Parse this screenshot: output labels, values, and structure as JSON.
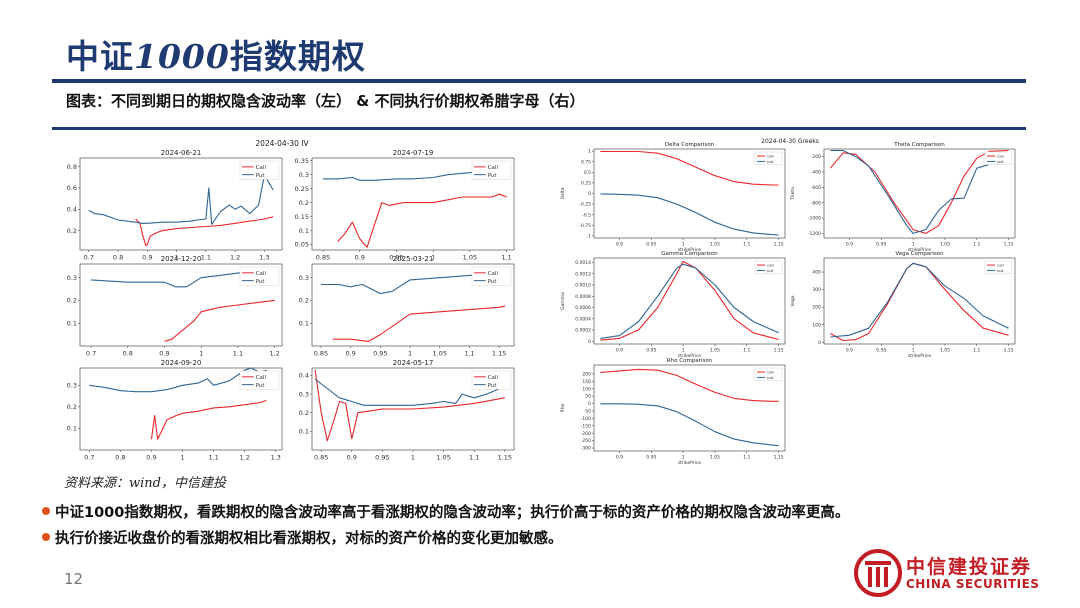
{
  "header": {
    "title_cn": "中证",
    "title_num": "1000",
    "title_cn2": "指数期权",
    "subtitle": "图表：不同到期日的期权隐含波动率（左） & 不同执行价期权希腊字母（右）"
  },
  "source": "资料来源：wind，中信建投",
  "bullets": [
    "中证1000指数期权，看跌期权的隐含波动率高于看涨期权的隐含波动率；执行价高于标的资产价格的期权隐含波动率更高。",
    "执行价接近收盘价的看涨期权相比看涨期权，对标的资产价格的变化更加敏感。"
  ],
  "page_number": "12",
  "logo": {
    "cn": "中信建投证券",
    "en": "CHINA SECURITIES"
  },
  "colors": {
    "call": "#e8262d",
    "put": "#2f6591",
    "brand_blue": "#1f3a70",
    "brand_red": "#c21d24"
  },
  "left_figure": {
    "suptitle": "2024-04-30 IV"
  },
  "right_figure": {
    "suptitle": "2024-04-30 Greeks",
    "xlabel": "strikePrice"
  },
  "chart_data": [
    {
      "type": "line",
      "title": "2024-06-21",
      "xlim": [
        0.67,
        1.36
      ],
      "ylim": [
        0.02,
        0.88
      ],
      "xticks": [
        0.7,
        0.8,
        0.9,
        1.0,
        1.1,
        1.2,
        1.3
      ],
      "yticks": [
        0.2,
        0.4,
        0.6,
        0.8
      ],
      "legend": "top-right",
      "series": [
        {
          "name": "Call",
          "x": [
            0.86,
            0.875,
            0.885,
            0.895,
            0.9,
            0.91,
            0.93,
            0.95,
            1.0,
            1.05,
            1.1,
            1.15,
            1.2,
            1.25,
            1.3,
            1.33
          ],
          "y": [
            0.31,
            0.27,
            0.15,
            0.06,
            0.07,
            0.15,
            0.18,
            0.2,
            0.22,
            0.23,
            0.24,
            0.25,
            0.27,
            0.29,
            0.31,
            0.33
          ]
        },
        {
          "name": "Put",
          "x": [
            0.7,
            0.72,
            0.75,
            0.78,
            0.8,
            0.83,
            0.86,
            0.88,
            0.9,
            0.95,
            1.0,
            1.05,
            1.07,
            1.1,
            1.11,
            1.12,
            1.15,
            1.18,
            1.2,
            1.22,
            1.25,
            1.28,
            1.3,
            1.33
          ],
          "y": [
            0.39,
            0.36,
            0.35,
            0.32,
            0.3,
            0.29,
            0.28,
            0.27,
            0.27,
            0.28,
            0.28,
            0.29,
            0.3,
            0.31,
            0.6,
            0.26,
            0.38,
            0.44,
            0.4,
            0.43,
            0.36,
            0.44,
            0.72,
            0.58
          ]
        }
      ]
    },
    {
      "type": "line",
      "title": "2024-07-19",
      "xlim": [
        0.835,
        1.11
      ],
      "ylim": [
        0.03,
        0.36
      ],
      "xticks": [
        0.85,
        0.9,
        0.95,
        1.0,
        1.05,
        1.1
      ],
      "yticks": [
        0.05,
        0.1,
        0.15,
        0.2,
        0.25,
        0.3,
        0.35
      ],
      "legend": "top-right",
      "series": [
        {
          "name": "Call",
          "x": [
            0.87,
            0.88,
            0.89,
            0.9,
            0.91,
            0.93,
            0.94,
            0.96,
            0.98,
            1.0,
            1.02,
            1.04,
            1.06,
            1.08,
            1.09,
            1.1
          ],
          "y": [
            0.06,
            0.09,
            0.13,
            0.07,
            0.04,
            0.2,
            0.19,
            0.2,
            0.2,
            0.2,
            0.21,
            0.22,
            0.22,
            0.22,
            0.23,
            0.22
          ]
        },
        {
          "name": "Put",
          "x": [
            0.85,
            0.87,
            0.89,
            0.9,
            0.92,
            0.95,
            0.97,
            1.0,
            1.02,
            1.04,
            1.06,
            1.07,
            1.08,
            1.09,
            1.1
          ],
          "y": [
            0.285,
            0.285,
            0.29,
            0.28,
            0.28,
            0.285,
            0.285,
            0.29,
            0.3,
            0.305,
            0.31,
            0.315,
            0.315,
            0.315,
            0.315
          ]
        }
      ]
    },
    {
      "type": "line",
      "title": "2024-12-20",
      "xlim": [
        0.67,
        1.22
      ],
      "ylim": [
        0.0,
        0.36
      ],
      "xticks": [
        0.7,
        0.8,
        0.9,
        1.0,
        1.1,
        1.2
      ],
      "yticks": [
        0.1,
        0.2,
        0.3
      ],
      "legend": "top-right",
      "series": [
        {
          "name": "Call",
          "x": [
            0.9,
            0.92,
            0.95,
            0.98,
            1.0,
            1.05,
            1.1,
            1.15,
            1.2
          ],
          "y": [
            0.02,
            0.03,
            0.07,
            0.11,
            0.15,
            0.17,
            0.18,
            0.19,
            0.2
          ]
        },
        {
          "name": "Put",
          "x": [
            0.7,
            0.75,
            0.8,
            0.85,
            0.9,
            0.93,
            0.96,
            0.98,
            1.0,
            1.05,
            1.1,
            1.15,
            1.2
          ],
          "y": [
            0.29,
            0.285,
            0.28,
            0.28,
            0.28,
            0.26,
            0.26,
            0.28,
            0.3,
            0.31,
            0.32,
            0.33,
            0.33
          ]
        }
      ]
    },
    {
      "type": "line",
      "title": "2025-03-21",
      "xlim": [
        0.835,
        1.175
      ],
      "ylim": [
        0.0,
        0.36
      ],
      "xticks": [
        0.85,
        0.9,
        0.95,
        1.0,
        1.05,
        1.1,
        1.15
      ],
      "yticks": [
        0.1,
        0.2,
        0.3
      ],
      "legend": "top-right",
      "series": [
        {
          "name": "Call",
          "x": [
            0.87,
            0.9,
            0.93,
            0.95,
            1.0,
            1.05,
            1.1,
            1.15,
            1.16
          ],
          "y": [
            0.03,
            0.03,
            0.02,
            0.05,
            0.14,
            0.15,
            0.16,
            0.17,
            0.175
          ]
        },
        {
          "name": "Put",
          "x": [
            0.85,
            0.88,
            0.9,
            0.92,
            0.95,
            0.97,
            1.0,
            1.05,
            1.1,
            1.15
          ],
          "y": [
            0.27,
            0.27,
            0.26,
            0.27,
            0.23,
            0.24,
            0.29,
            0.3,
            0.31,
            0.32
          ]
        }
      ]
    },
    {
      "type": "line",
      "title": "2024-09-20",
      "xlim": [
        0.67,
        1.32
      ],
      "ylim": [
        0.0,
        0.38
      ],
      "xticks": [
        0.7,
        0.8,
        0.9,
        1.0,
        1.1,
        1.2,
        1.3
      ],
      "yticks": [
        0.1,
        0.2,
        0.3
      ],
      "legend": "top-right",
      "series": [
        {
          "name": "Call",
          "x": [
            0.9,
            0.91,
            0.92,
            0.95,
            0.98,
            1.0,
            1.05,
            1.1,
            1.15,
            1.2,
            1.25,
            1.27
          ],
          "y": [
            0.05,
            0.16,
            0.05,
            0.14,
            0.16,
            0.17,
            0.18,
            0.195,
            0.2,
            0.21,
            0.22,
            0.23
          ]
        },
        {
          "name": "Put",
          "x": [
            0.7,
            0.75,
            0.8,
            0.85,
            0.9,
            0.95,
            1.0,
            1.05,
            1.08,
            1.1,
            1.15,
            1.18,
            1.2,
            1.22,
            1.25,
            1.27
          ],
          "y": [
            0.3,
            0.29,
            0.275,
            0.27,
            0.27,
            0.28,
            0.3,
            0.31,
            0.33,
            0.3,
            0.32,
            0.35,
            0.37,
            0.38,
            0.36,
            0.37
          ]
        }
      ]
    },
    {
      "type": "line",
      "title": "2024-05-17",
      "xlim": [
        0.835,
        1.165
      ],
      "ylim": [
        0.0,
        0.44
      ],
      "xticks": [
        0.85,
        0.9,
        0.95,
        1.0,
        1.05,
        1.1,
        1.15
      ],
      "yticks": [
        0.1,
        0.2,
        0.3,
        0.4
      ],
      "legend": "top-right",
      "series": [
        {
          "name": "Call",
          "x": [
            0.84,
            0.85,
            0.86,
            0.87,
            0.88,
            0.89,
            0.9,
            0.91,
            0.93,
            0.95,
            1.0,
            1.05,
            1.1,
            1.15
          ],
          "y": [
            0.43,
            0.2,
            0.05,
            0.15,
            0.26,
            0.25,
            0.06,
            0.2,
            0.21,
            0.22,
            0.22,
            0.23,
            0.25,
            0.28
          ]
        },
        {
          "name": "Put",
          "x": [
            0.84,
            0.86,
            0.88,
            0.9,
            0.92,
            0.95,
            0.98,
            1.0,
            1.03,
            1.05,
            1.07,
            1.08,
            1.1,
            1.12,
            1.15
          ],
          "y": [
            0.38,
            0.33,
            0.28,
            0.26,
            0.24,
            0.24,
            0.24,
            0.24,
            0.25,
            0.26,
            0.25,
            0.3,
            0.28,
            0.3,
            0.34
          ]
        }
      ]
    },
    {
      "type": "line",
      "title": "Delta Comparison",
      "ylabel": "Delta",
      "xlim": [
        0.86,
        1.16
      ],
      "ylim": [
        -1.05,
        1.05
      ],
      "xticks": [
        0.85,
        0.9,
        0.95,
        1.0,
        1.05,
        1.1,
        1.15
      ],
      "yticks": [
        -1.0,
        -0.75,
        -0.5,
        -0.25,
        0.0,
        0.25,
        0.5,
        0.75,
        1.0
      ],
      "legend": "top-right",
      "series": [
        {
          "name": "call",
          "x": [
            0.87,
            0.9,
            0.93,
            0.96,
            0.99,
            1.02,
            1.05,
            1.08,
            1.11,
            1.14,
            1.15
          ],
          "y": [
            0.99,
            0.99,
            0.99,
            0.95,
            0.82,
            0.62,
            0.42,
            0.28,
            0.22,
            0.2,
            0.2
          ]
        },
        {
          "name": "put",
          "x": [
            0.87,
            0.9,
            0.93,
            0.96,
            0.99,
            1.02,
            1.05,
            1.08,
            1.11,
            1.14,
            1.15
          ],
          "y": [
            -0.01,
            -0.02,
            -0.04,
            -0.1,
            -0.25,
            -0.45,
            -0.68,
            -0.84,
            -0.93,
            -0.97,
            -0.98
          ]
        }
      ]
    },
    {
      "type": "line",
      "title": "Theta Comparison",
      "ylabel": "Theta",
      "xlim": [
        0.86,
        1.16
      ],
      "ylim": [
        -1260,
        -100
      ],
      "xticks": [
        0.85,
        0.9,
        0.95,
        1.0,
        1.05,
        1.1,
        1.15
      ],
      "yticks": [
        -1200,
        -1000,
        -800,
        -600,
        -400,
        -200
      ],
      "legend": "top-right",
      "series": [
        {
          "name": "call",
          "x": [
            0.87,
            0.89,
            0.91,
            0.94,
            0.97,
            1.0,
            1.02,
            1.04,
            1.06,
            1.08,
            1.1,
            1.12,
            1.15
          ],
          "y": [
            -350,
            -150,
            -170,
            -400,
            -800,
            -1150,
            -1200,
            -1100,
            -800,
            -450,
            -220,
            -130,
            -120
          ]
        },
        {
          "name": "put",
          "x": [
            0.87,
            0.89,
            0.91,
            0.93,
            0.96,
            0.99,
            1.0,
            1.02,
            1.04,
            1.06,
            1.08,
            1.1,
            1.12,
            1.15
          ],
          "y": [
            -120,
            -120,
            -200,
            -320,
            -700,
            -1100,
            -1200,
            -1150,
            -900,
            -750,
            -740,
            -350,
            -300,
            -250
          ]
        }
      ]
    },
    {
      "type": "line",
      "title": "Gamma Comparison",
      "ylabel": "Gamma",
      "xlim": [
        0.86,
        1.16
      ],
      "ylim": [
        -5e-05,
        0.00148
      ],
      "xticks": [
        0.85,
        0.9,
        0.95,
        1.0,
        1.05,
        1.1,
        1.15
      ],
      "yticks": [
        0.0,
        0.0002,
        0.0004,
        0.0006,
        0.0008,
        0.001,
        0.0012,
        0.0014
      ],
      "legend": "top-right",
      "series": [
        {
          "name": "call",
          "x": [
            0.87,
            0.9,
            0.93,
            0.96,
            0.99,
            1.0,
            1.02,
            1.05,
            1.08,
            1.11,
            1.15
          ],
          "y": [
            2e-05,
            5e-05,
            0.0002,
            0.0006,
            0.0012,
            0.00142,
            0.0013,
            0.0009,
            0.0004,
            0.00015,
            3e-05
          ]
        },
        {
          "name": "put",
          "x": [
            0.87,
            0.9,
            0.93,
            0.96,
            0.99,
            1.0,
            1.02,
            1.05,
            1.08,
            1.11,
            1.15
          ],
          "y": [
            5e-05,
            0.0001,
            0.00035,
            0.0008,
            0.0013,
            0.00137,
            0.0013,
            0.001,
            0.0006,
            0.00035,
            0.00015
          ]
        }
      ]
    },
    {
      "type": "line",
      "title": "Vega Comparison",
      "ylabel": "Vega",
      "xlim": [
        0.86,
        1.16
      ],
      "ylim": [
        -10,
        480
      ],
      "xticks": [
        0.85,
        0.9,
        0.95,
        1.0,
        1.05,
        1.1,
        1.15
      ],
      "yticks": [
        0,
        100,
        200,
        300,
        400
      ],
      "legend": "top-right",
      "series": [
        {
          "name": "call",
          "x": [
            0.87,
            0.89,
            0.91,
            0.93,
            0.96,
            0.99,
            1.0,
            1.02,
            1.05,
            1.08,
            1.11,
            1.15
          ],
          "y": [
            50,
            10,
            15,
            50,
            220,
            420,
            450,
            430,
            300,
            180,
            80,
            40
          ]
        },
        {
          "name": "put",
          "x": [
            0.87,
            0.9,
            0.93,
            0.96,
            0.99,
            1.0,
            1.02,
            1.05,
            1.08,
            1.11,
            1.15
          ],
          "y": [
            30,
            40,
            80,
            230,
            420,
            450,
            430,
            320,
            250,
            150,
            80
          ]
        }
      ]
    },
    {
      "type": "line",
      "title": "Rho Comparison",
      "ylabel": "Rho",
      "xlim": [
        0.86,
        1.16
      ],
      "ylim": [
        -320,
        260
      ],
      "xticks": [
        0.85,
        0.9,
        0.95,
        1.0,
        1.05,
        1.1,
        1.15
      ],
      "yticks": [
        -300,
        -250,
        -200,
        -150,
        -100,
        -50,
        0,
        50,
        100,
        150,
        200
      ],
      "legend": "top-right",
      "series": [
        {
          "name": "call",
          "x": [
            0.87,
            0.9,
            0.93,
            0.96,
            0.99,
            1.02,
            1.05,
            1.08,
            1.11,
            1.14,
            1.15
          ],
          "y": [
            210,
            220,
            230,
            225,
            190,
            130,
            75,
            35,
            20,
            15,
            15
          ]
        },
        {
          "name": "put",
          "x": [
            0.87,
            0.9,
            0.93,
            0.96,
            0.99,
            1.02,
            1.05,
            1.08,
            1.11,
            1.14,
            1.15
          ],
          "y": [
            -2,
            -2,
            -5,
            -15,
            -55,
            -120,
            -190,
            -240,
            -265,
            -280,
            -285
          ]
        }
      ]
    }
  ]
}
